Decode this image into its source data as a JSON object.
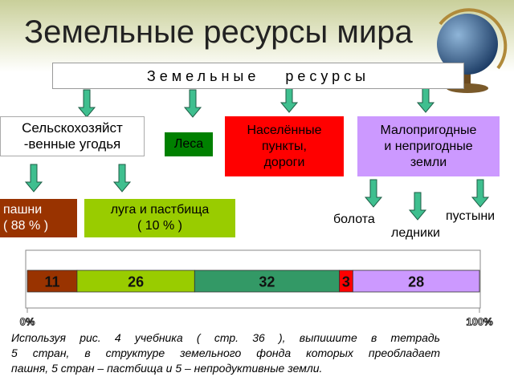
{
  "title": "Земельные ресурсы мира",
  "root": "Земельные ресурсы",
  "nodes": [
    {
      "lines": [
        "Сельскохозяйст",
        "-венные угодья"
      ]
    },
    {
      "lines": [
        "Леса"
      ]
    },
    {
      "lines": [
        "Населённые",
        "пункты,",
        "дороги"
      ]
    },
    {
      "lines": [
        "Малопригодные",
        "и непригодные",
        "земли"
      ]
    },
    {
      "lines": [
        "пашни",
        "( 88 % )"
      ]
    },
    {
      "lines": [
        "луга  и  пастбища",
        "( 10 % )"
      ]
    },
    {
      "lines": [
        "болота"
      ]
    },
    {
      "lines": [
        "ледники"
      ]
    },
    {
      "lines": [
        "пустыни"
      ]
    }
  ],
  "chart_data": {
    "type": "bar",
    "stacked": true,
    "orientation": "horizontal",
    "values": [
      11,
      26,
      32,
      3,
      28
    ],
    "colors": [
      "#993300",
      "#99cc00",
      "#339966",
      "#ff0000",
      "#cc99ff"
    ],
    "xlim": [
      0,
      100
    ],
    "xticks": [
      {
        "value": 0,
        "label": "0%"
      },
      {
        "value": 100,
        "label": "100%"
      }
    ]
  },
  "task": {
    "lines": [
      "Используя  рис.  4  учебника  ( стр.  36 ),  выпишите  в  тетрадь",
      "5  стран,  в  структуре  земельного  фонда  которых  преобладает",
      "пашня,  5  стран – пастбища  и  5 – непродуктивные  земли."
    ]
  }
}
